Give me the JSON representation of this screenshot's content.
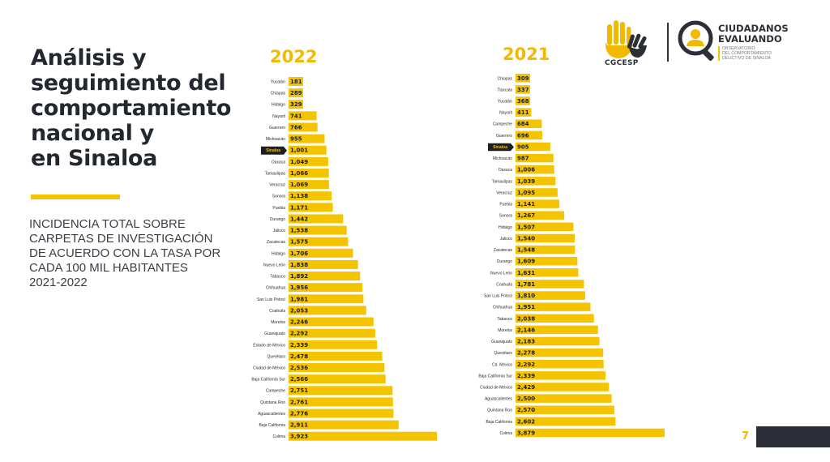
{
  "header": {
    "title_lines": [
      "Análisis y",
      "seguimiento del",
      "comportamiento",
      "nacional y",
      "en Sinaloa"
    ],
    "subtitle_lines": [
      "INCIDENCIA TOTAL SOBRE",
      "CARPETAS DE INVESTIGACIÓN",
      "DE ACUERDO CON LA TASA POR",
      "CADA 100 MIL HABITANTES",
      "2021-2022"
    ]
  },
  "logos": {
    "cgcesp": "CGCESP",
    "ce_title_lines": [
      "CIUDADANOS",
      "EVALUANDO"
    ],
    "ce_sub_lines": [
      "OBSERVATORIO",
      "DEL COMPORTAMIENTO",
      "DELICTIVO DE SINALOA"
    ],
    "hand_icon": "raised-hands-logo-icon",
    "magnifier_icon": "magnifier-person-logo-icon"
  },
  "page_number": "7",
  "colors": {
    "bar": "#f5c400",
    "highlight_box": "#1f2023",
    "highlight_text": "#f5c400",
    "year": "#f3b800",
    "title": "#23272e"
  },
  "chart_data": [
    {
      "type": "bar",
      "orientation": "horizontal",
      "year_label": "2022",
      "highlight": "Sinaloa",
      "categories": [
        "Yucatán",
        "Chiapas",
        "Hidalgo",
        "Nayarit",
        "Guerrero",
        "Michoacán",
        "Sinaloa",
        "Oaxaca",
        "Tamaulipas",
        "Veracruz",
        "Sonora",
        "Puebla",
        "Durango",
        "Jalisco",
        "Zacatecas",
        "Hidalgo",
        "Nuevo León",
        "Tabasco",
        "Chihuahua",
        "San Luis Potosí",
        "Coahuila",
        "Morelos",
        "Guanajuato",
        "Estado de México",
        "Querétaro",
        "Ciudad de México",
        "Baja California Sur",
        "Campeche",
        "Quintana Roo",
        "Aguascalientes",
        "Baja California",
        "Colima"
      ],
      "values": [
        181,
        289,
        329,
        741,
        766,
        955,
        1001,
        1049,
        1066,
        1069,
        1138,
        1171,
        1442,
        1538,
        1575,
        1706,
        1838,
        1892,
        1956,
        1981,
        2053,
        2246,
        2292,
        2339,
        2478,
        2536,
        2566,
        2751,
        2761,
        2776,
        2911,
        3923
      ],
      "labels": [
        "181",
        "289",
        "329",
        "741",
        "766",
        "955",
        "1,001",
        "1,049",
        "1,066",
        "1,069",
        "1,138",
        "1,171",
        "1,442",
        "1,538",
        "1,575",
        "1,706",
        "1,838",
        "1,892",
        "1,956",
        "1,981",
        "2,053",
        "2,246",
        "2,292",
        "2,339",
        "2,478",
        "2,536",
        "2,566",
        "2,751",
        "2,761",
        "2,776",
        "2,911",
        "3,923"
      ]
    },
    {
      "type": "bar",
      "orientation": "horizontal",
      "year_label": "2021",
      "highlight": "Sinaloa",
      "categories": [
        "Chiapas",
        "Tlaxcala",
        "Yucatán",
        "Nayarit",
        "Campeche",
        "Guerrero",
        "Sinaloa",
        "Michoacán",
        "Oaxaca",
        "Tamaulipas",
        "Veracruz",
        "Puebla",
        "Sonora",
        "Hidalgo",
        "Jalisco",
        "Zacatecas",
        "Durango",
        "Nuevo León",
        "Coahuila",
        "San Luis Potosí",
        "Chihuahua",
        "Tabasco",
        "Morelos",
        "Guanajuato",
        "Querétaro",
        "Cd. México",
        "Baja California Sur",
        "Ciudad de México",
        "Aguascalientes",
        "Quintana Roo",
        "Baja California",
        "Colima"
      ],
      "values": [
        309,
        337,
        368,
        411,
        684,
        696,
        905,
        987,
        1006,
        1039,
        1095,
        1141,
        1267,
        1507,
        1540,
        1548,
        1609,
        1631,
        1781,
        1810,
        1951,
        2038,
        2146,
        2183,
        2278,
        2292,
        2339,
        2429,
        2500,
        2570,
        2602,
        3879
      ],
      "labels": [
        "309",
        "337",
        "368",
        "411",
        "684",
        "696",
        "905",
        "987",
        "1,006",
        "1,039",
        "1,095",
        "1,141",
        "1,267",
        "1,507",
        "1,540",
        "1,548",
        "1,609",
        "1,631",
        "1,781",
        "1,810",
        "1,951",
        "2,038",
        "2,146",
        "2,183",
        "2,278",
        "2,292",
        "2,339",
        "2,429",
        "2,500",
        "2,570",
        "2,602",
        "3,879"
      ]
    }
  ]
}
